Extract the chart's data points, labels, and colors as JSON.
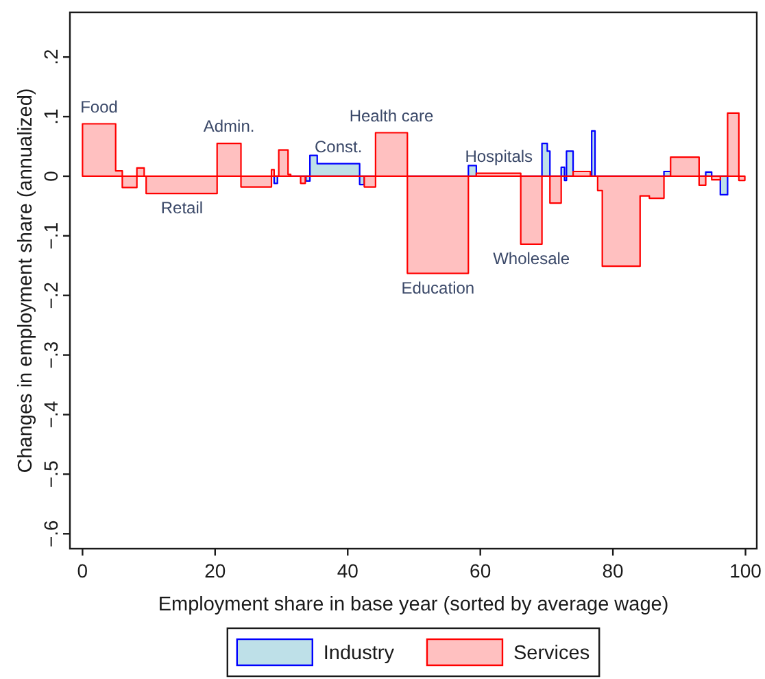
{
  "chart_data": {
    "type": "area",
    "xlabel": "Employment share in base year (sorted by average wage)",
    "ylabel": "Changes in employment share (annualized)",
    "xlim": [
      -1.9,
      101.7
    ],
    "ylim": [
      -0.625,
      0.275
    ],
    "xticks": [
      0,
      20,
      40,
      60,
      80,
      100
    ],
    "yticks": [
      {
        "value": -0.6,
        "label": "−.6"
      },
      {
        "value": -0.5,
        "label": "−.5"
      },
      {
        "value": -0.4,
        "label": "−.4"
      },
      {
        "value": -0.3,
        "label": "−.3"
      },
      {
        "value": -0.2,
        "label": "−.2"
      },
      {
        "value": -0.1,
        "label": "−.1"
      },
      {
        "value": 0,
        "label": "0"
      },
      {
        "value": 0.1,
        "label": ".1"
      },
      {
        "value": 0.2,
        "label": ".2"
      }
    ],
    "legend": "bottom",
    "series": [
      {
        "name": "Industry",
        "color": "#bee0e8",
        "x": [
          28.9,
          29.4,
          29.4,
          33.7,
          33.7,
          34.3,
          34.3,
          35.4,
          35.4,
          41.8,
          41.8,
          42.5,
          42.5,
          58.2,
          58.2,
          59.4,
          59.4,
          69.3,
          69.3,
          70.1,
          70.1,
          70.5,
          70.5,
          72.2,
          72.2,
          72.7,
          72.7,
          73.0,
          73.0,
          74.0,
          74.0,
          76.8,
          76.8,
          77.3,
          77.3,
          87.7,
          87.7,
          88.7,
          88.7,
          94.0,
          94.0,
          94.9,
          94.9,
          96.2,
          96.2,
          97.3
        ],
        "values": [
          -0.012,
          -0.012,
          0,
          0,
          -0.008,
          -0.008,
          0.035,
          0.035,
          0.021,
          0.021,
          -0.014,
          -0.014,
          0,
          0,
          0.018,
          0.018,
          0,
          0,
          0.055,
          0.055,
          0.042,
          0.042,
          0,
          0,
          0.015,
          0.015,
          -0.007,
          -0.007,
          0.042,
          0.042,
          0,
          0,
          0.076,
          0.076,
          0,
          0,
          0.008,
          0.008,
          0,
          0,
          0.007,
          0.007,
          0,
          0,
          -0.031,
          -0.031
        ]
      },
      {
        "name": "Services",
        "color": "#ffc0c0",
        "x": [
          0,
          5.0,
          5.0,
          6.0,
          6.0,
          8.2,
          8.2,
          9.3,
          9.3,
          9.6,
          9.6,
          20.3,
          20.3,
          23.9,
          23.9,
          28.5,
          28.5,
          28.9,
          28.9,
          29.6,
          29.6,
          31.0,
          31.0,
          31.4,
          31.4,
          32.9,
          32.9,
          33.6,
          33.6,
          42.5,
          42.5,
          44.2,
          44.2,
          49.0,
          49.0,
          58.2,
          58.2,
          59.4,
          59.4,
          66.1,
          66.1,
          69.3,
          69.3,
          70.5,
          70.5,
          72.2,
          72.2,
          74.0,
          74.0,
          76.6,
          76.6,
          77.7,
          77.7,
          78.4,
          78.4,
          84.1,
          84.1,
          85.5,
          85.5,
          87.7,
          87.7,
          88.7,
          88.7,
          93.0,
          93.0,
          94.0,
          94.0,
          94.9,
          94.9,
          96.2,
          96.2,
          97.3,
          97.3,
          99.0,
          99.0,
          99.9
        ],
        "values": [
          0.088,
          0.088,
          0.009,
          0.009,
          -0.019,
          -0.019,
          0.014,
          0.014,
          0,
          0,
          -0.029,
          -0.029,
          0.055,
          0.055,
          -0.018,
          -0.018,
          0.011,
          0.011,
          0,
          0,
          0.044,
          0.044,
          0.003,
          0.003,
          0,
          0,
          -0.012,
          -0.012,
          0,
          0,
          -0.018,
          -0.018,
          0.073,
          0.073,
          -0.163,
          -0.163,
          0,
          0,
          0.005,
          0.005,
          -0.114,
          -0.114,
          0,
          0,
          -0.045,
          -0.045,
          0,
          0,
          0.008,
          0.008,
          0,
          0,
          -0.024,
          -0.024,
          -0.151,
          -0.151,
          -0.033,
          -0.033,
          -0.037,
          -0.037,
          0,
          0,
          0.032,
          0.032,
          -0.015,
          -0.015,
          0,
          0,
          -0.006,
          -0.006,
          0,
          0,
          0.106,
          0.106,
          -0.007,
          -0.007
        ]
      }
    ],
    "annotations": [
      {
        "text": "Food",
        "x": 2.5,
        "y": 0.088
      },
      {
        "text": "Retail",
        "x": 15.0,
        "y": -0.029
      },
      {
        "text": "Admin.",
        "x": 22.1,
        "y": 0.055
      },
      {
        "text": "Const.",
        "x": 38.6,
        "y": 0.021
      },
      {
        "text": "Health care",
        "x": 46.6,
        "y": 0.073
      },
      {
        "text": "Education",
        "x": 53.6,
        "y": -0.163
      },
      {
        "text": "Hospitals",
        "x": 62.8,
        "y": 0.005
      },
      {
        "text": "Wholesale",
        "x": 67.7,
        "y": -0.114
      }
    ]
  }
}
